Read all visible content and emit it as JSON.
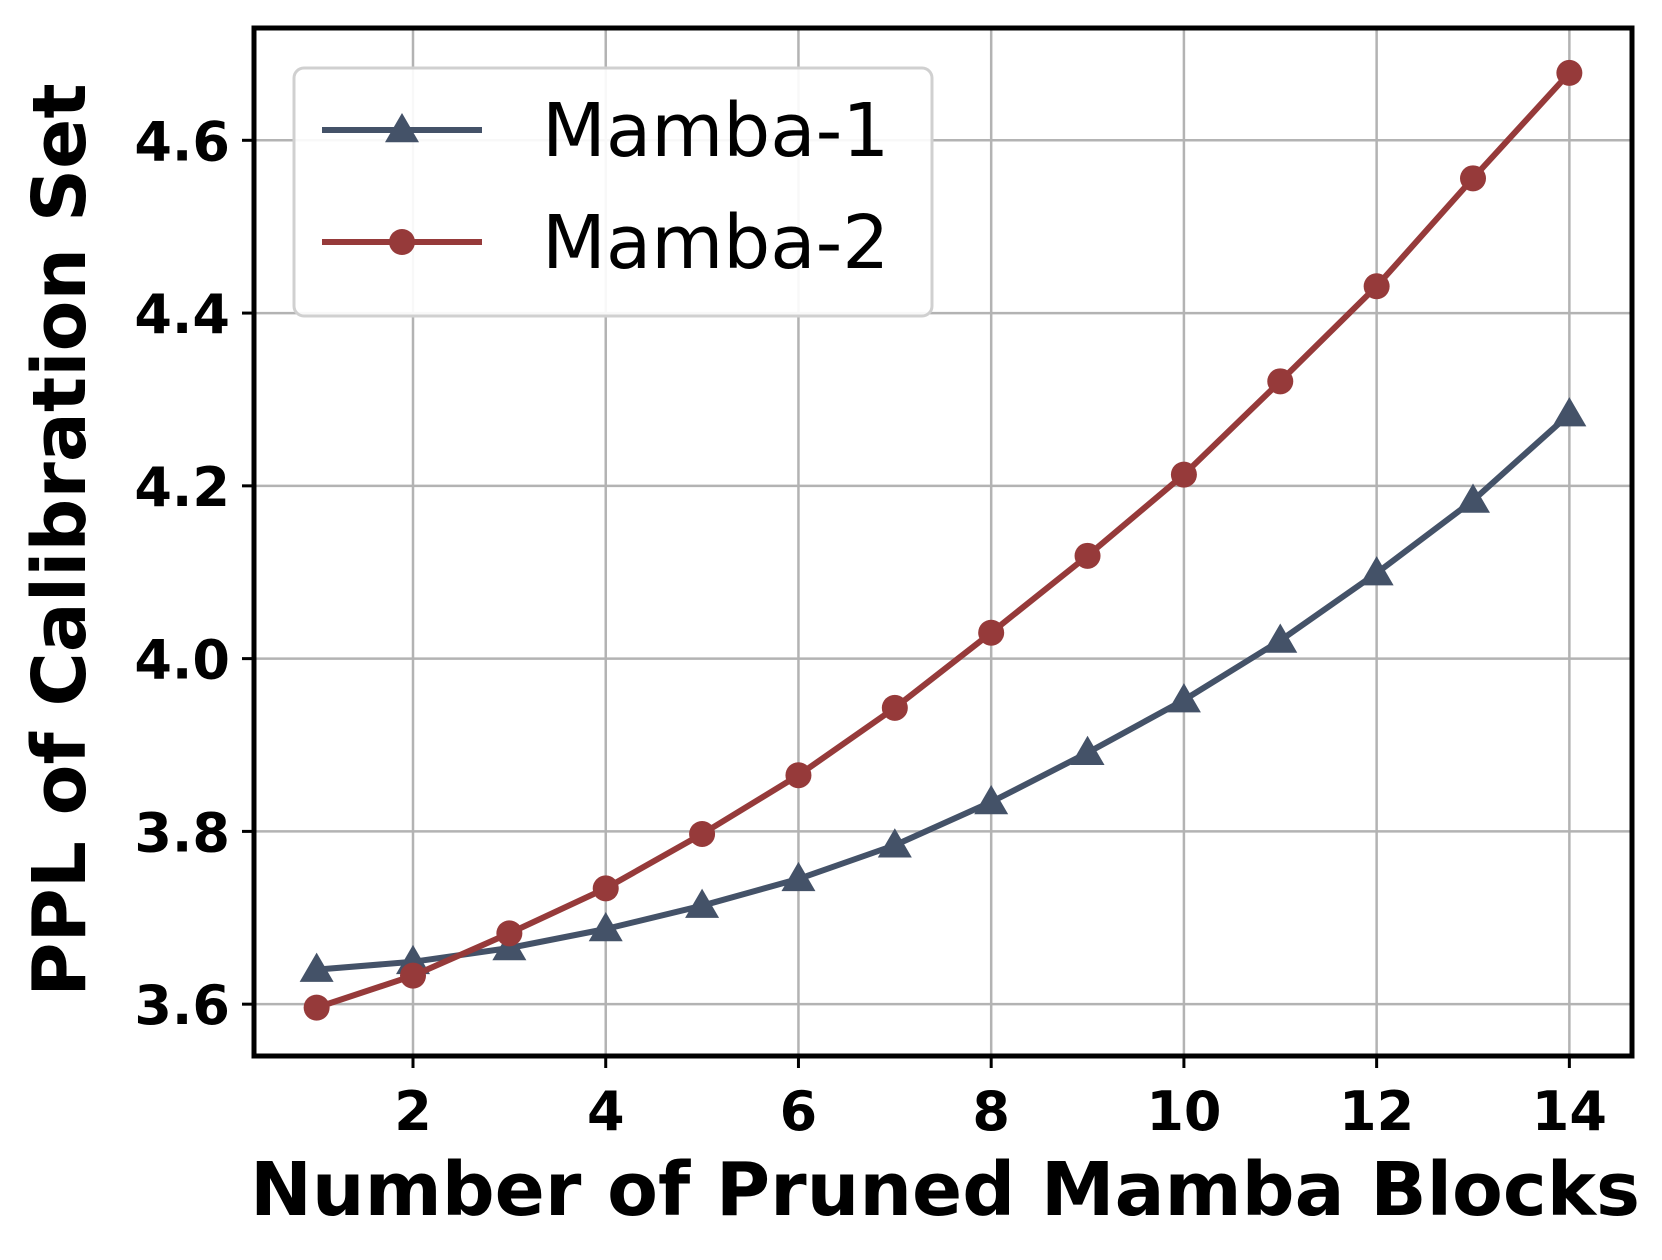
{
  "chart_data": {
    "type": "line",
    "xlabel": "Number of Pruned Mamba Blocks",
    "ylabel": "PPL of Calibration Set",
    "x": [
      1,
      2,
      3,
      4,
      5,
      6,
      7,
      8,
      9,
      10,
      11,
      12,
      13,
      14
    ],
    "xlim": [
      0.35,
      14.65
    ],
    "ylim": [
      3.54,
      4.73
    ],
    "xticks": [
      2,
      4,
      6,
      8,
      10,
      12,
      14
    ],
    "yticks": [
      3.6,
      3.8,
      4.0,
      4.2,
      4.4,
      4.6
    ],
    "xtick_labels": [
      "2",
      "4",
      "6",
      "8",
      "10",
      "12",
      "14"
    ],
    "ytick_labels": [
      "3.6",
      "3.8",
      "4.0",
      "4.2",
      "4.4",
      "4.6"
    ],
    "grid": true,
    "legend_position": "top-left",
    "series": [
      {
        "name": "Mamba-1",
        "color": "#445268",
        "marker": "triangle",
        "values": [
          3.64,
          3.649,
          3.665,
          3.687,
          3.714,
          3.745,
          3.784,
          3.834,
          3.891,
          3.952,
          4.021,
          4.099,
          4.183,
          4.283
        ]
      },
      {
        "name": "Mamba-2",
        "color": "#963a3a",
        "marker": "circle",
        "values": [
          3.596,
          3.633,
          3.682,
          3.734,
          3.797,
          3.865,
          3.943,
          4.03,
          4.119,
          4.213,
          4.321,
          4.431,
          4.556,
          4.678
        ]
      }
    ]
  }
}
